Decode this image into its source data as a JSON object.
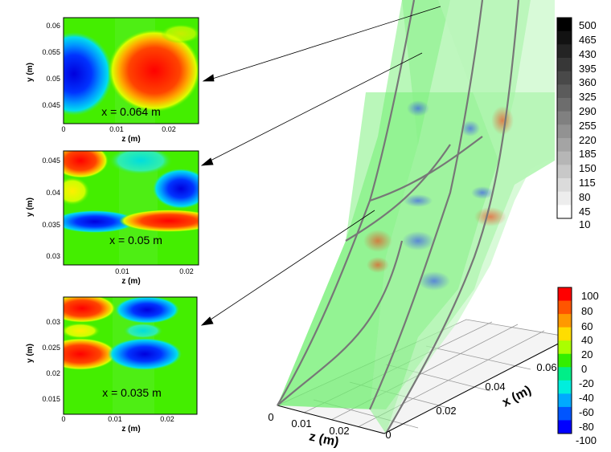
{
  "panels": [
    {
      "id": "p1",
      "label": "x = 0.064 m",
      "ylabel": "y (m)",
      "xlabel": "z (m)",
      "yticks": [
        "0.06",
        "0.055",
        "0.05",
        "0.045"
      ],
      "xticks": [
        "0",
        "0.01",
        "0.02"
      ]
    },
    {
      "id": "p2",
      "label": "x = 0.05 m",
      "ylabel": "y (m)",
      "xlabel": "z (m)",
      "yticks": [
        "0.045",
        "0.04",
        "0.035",
        "0.03"
      ],
      "xticks": [
        "0.01",
        "0.02"
      ]
    },
    {
      "id": "p3",
      "label": "x = 0.035 m",
      "ylabel": "y (m)",
      "xlabel": "z (m)",
      "yticks": [
        "0.03",
        "0.025",
        "0.02",
        "0.015"
      ],
      "xticks": [
        "0",
        "0.01",
        "0.02"
      ]
    }
  ],
  "gray_colorbar": {
    "labels": [
      "500",
      "465",
      "430",
      "395",
      "360",
      "325",
      "290",
      "255",
      "220",
      "185",
      "150",
      "115",
      "80",
      "45",
      "10"
    ]
  },
  "color_colorbar": {
    "labels": [
      "100",
      "80",
      "60",
      "40",
      "20",
      "0",
      "-20",
      "-40",
      "-60",
      "-80",
      "-100"
    ],
    "colors": [
      "#ff0000",
      "#ff5500",
      "#ff9900",
      "#ffdd00",
      "#aaff00",
      "#33ee00",
      "#00ee88",
      "#00eedd",
      "#00aaff",
      "#0055ff",
      "#0000ff"
    ]
  },
  "axes3d": {
    "z_label": "z (m)",
    "x_label": "x (m)",
    "z_ticks": [
      "0",
      "0.01",
      "0.02"
    ],
    "x_ticks": [
      "0",
      "0.02",
      "0.04",
      "0.06"
    ]
  }
}
